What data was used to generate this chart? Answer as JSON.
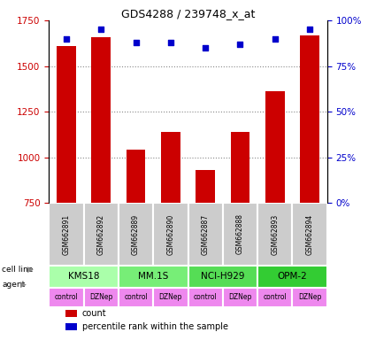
{
  "title": "GDS4288 / 239748_x_at",
  "samples": [
    "GSM662891",
    "GSM662892",
    "GSM662889",
    "GSM662890",
    "GSM662887",
    "GSM662888",
    "GSM662893",
    "GSM662894"
  ],
  "counts": [
    1610,
    1660,
    1040,
    1140,
    930,
    1140,
    1360,
    1670
  ],
  "percentile_ranks": [
    90,
    95,
    88,
    88,
    85,
    87,
    90,
    95
  ],
  "cell_lines": [
    {
      "label": "KMS18",
      "cols": [
        0,
        1
      ],
      "color": "#aaffaa"
    },
    {
      "label": "MM.1S",
      "cols": [
        2,
        3
      ],
      "color": "#77ee77"
    },
    {
      "label": "NCI-H929",
      "cols": [
        4,
        5
      ],
      "color": "#55dd55"
    },
    {
      "label": "OPM-2",
      "cols": [
        6,
        7
      ],
      "color": "#33cc33"
    }
  ],
  "agents": [
    "control",
    "DZNep",
    "control",
    "DZNep",
    "control",
    "DZNep",
    "control",
    "DZNep"
  ],
  "agent_color": "#ee88ee",
  "bar_color": "#cc0000",
  "dot_color": "#0000cc",
  "bar_bottom": 750,
  "ylim_left": [
    750,
    1750
  ],
  "ylim_right": [
    0,
    100
  ],
  "yticks_left": [
    750,
    1000,
    1250,
    1500,
    1750
  ],
  "yticks_right": [
    0,
    25,
    50,
    75,
    100
  ],
  "grid_color": "#aaaaaa",
  "sample_bg_color": "#cccccc",
  "bar_color_left": "#cc0000",
  "bar_color_right": "#0000cc"
}
